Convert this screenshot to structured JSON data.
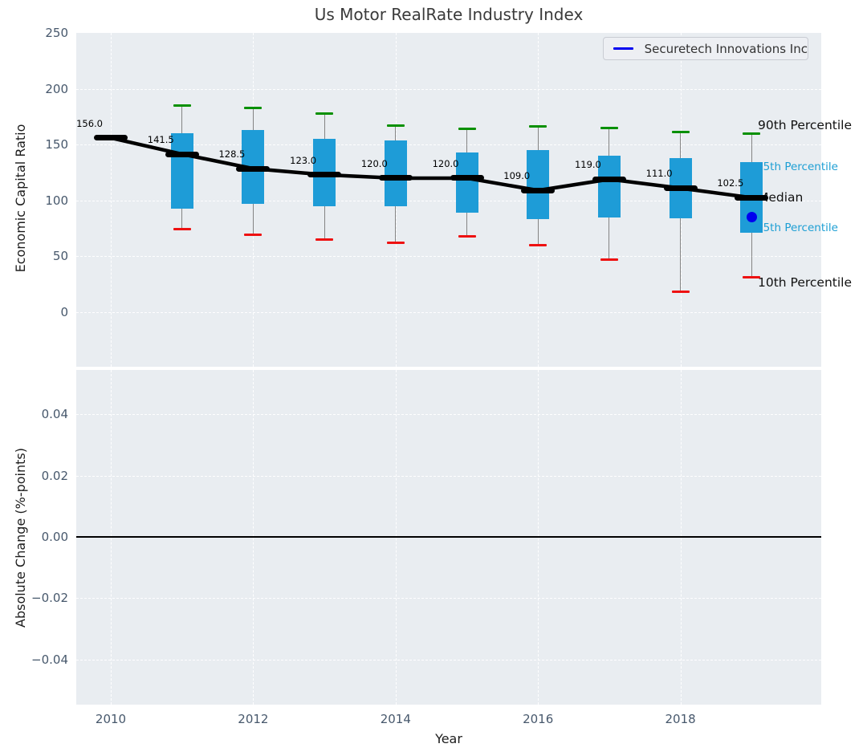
{
  "title": "Us Motor RealRate Industry Index",
  "legend": {
    "label": "Securetech Innovations Inc",
    "line_color": "#0000f0"
  },
  "axes": {
    "top": {
      "ylabel": "Economic Capital Ratio",
      "yticks": [
        250,
        200,
        150,
        100,
        50,
        0
      ],
      "ylim": [
        -47,
        250
      ]
    },
    "bottom": {
      "ylabel": "Absolute Change (%-points)",
      "yticks": [
        {
          "label": "0.04",
          "value": 0.04
        },
        {
          "label": "0.02",
          "value": 0.02
        },
        {
          "label": "0.00",
          "value": 0.0
        },
        {
          "label": "−0.02",
          "value": -0.02
        },
        {
          "label": "−0.04",
          "value": -0.04
        }
      ],
      "ylim": [
        -0.055,
        0.055
      ],
      "zero_line": 0.0
    },
    "x": {
      "label": "Year",
      "ticks": [
        2010,
        2012,
        2014,
        2016,
        2018
      ],
      "lim": [
        2009.5,
        2020.0
      ]
    }
  },
  "annotations": {
    "p90": "90th Percentile",
    "p75": "75th Percentile",
    "median": "Median",
    "p25": "25th Percentile",
    "p10": "10th Percentile"
  },
  "colors": {
    "box_fill": "#1e9cd7",
    "whisker": "#848484",
    "cap_top": "#089000",
    "cap_bottom": "#ee1111",
    "median": "#000000",
    "company": "#0000ef",
    "panel_bg": "#e9edf1",
    "grid": "#ffffff",
    "tick_text": "#47586c",
    "cyan_label": "#1d9fd4"
  },
  "chart_data": {
    "type": "boxplot-with-median-line",
    "x": [
      2010,
      2011,
      2012,
      2013,
      2014,
      2015,
      2016,
      2017,
      2018,
      2019
    ],
    "series": [
      {
        "name": "median",
        "values": [
          156.0,
          141.5,
          128.5,
          123.0,
          120.0,
          120.0,
          109.0,
          119.0,
          111.0,
          102.5
        ]
      },
      {
        "name": "p90",
        "values": [
          null,
          185,
          183,
          178,
          167,
          164,
          166,
          165,
          161,
          160
        ]
      },
      {
        "name": "q3",
        "values": [
          null,
          160,
          163,
          155,
          154,
          143,
          145,
          140,
          138,
          134
        ]
      },
      {
        "name": "q1",
        "values": [
          null,
          93,
          97,
          95,
          95,
          89,
          83,
          85,
          84,
          71
        ]
      },
      {
        "name": "p10",
        "values": [
          null,
          74,
          69,
          65,
          62,
          68,
          60,
          47,
          18,
          31
        ]
      }
    ],
    "median_labels": [
      "156.0",
      "141.5",
      "128.5",
      "123.0",
      "120.0",
      "120.0",
      "109.0",
      "119.0",
      "111.0",
      "102.5"
    ],
    "company_point": {
      "name": "Securetech Innovations Inc",
      "x": 2019,
      "y": 85
    },
    "title": "Us Motor RealRate Industry Index",
    "xlabel": "Year",
    "ylabel_top": "Economic Capital Ratio",
    "ylabel_bottom": "Absolute Change (%-points)",
    "legend_position": "upper right",
    "grid": true
  }
}
